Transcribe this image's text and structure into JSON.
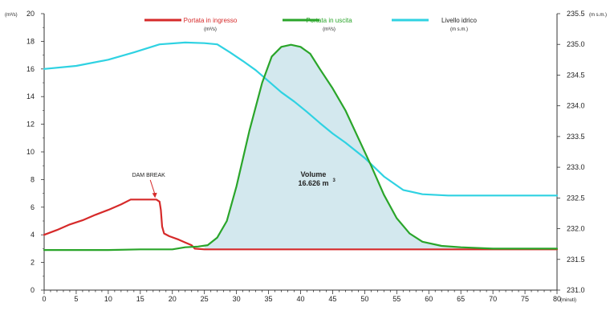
{
  "chart_data": {
    "type": "line",
    "x_unit": "(minuti)",
    "xlim": [
      0,
      80
    ],
    "x_ticks": [
      0,
      5,
      10,
      15,
      20,
      25,
      30,
      35,
      40,
      45,
      50,
      55,
      60,
      65,
      70,
      75,
      80
    ],
    "y_left": {
      "unit": "(m³/s)",
      "ylim": [
        0,
        20
      ],
      "ticks": [
        0,
        2,
        4,
        6,
        8,
        10,
        12,
        14,
        16,
        18,
        20
      ]
    },
    "y_right": {
      "unit": "(m s.m.)",
      "ylim": [
        231.0,
        235.5
      ],
      "ticks": [
        "231.0",
        "231.5",
        "232.0",
        "232.5",
        "233.0",
        "233.5",
        "234.0",
        "234.5",
        "235.0",
        "235.5"
      ]
    },
    "grid": false,
    "legend_position": "top",
    "series": [
      {
        "name": "Portata in ingresso",
        "unit": "(m³/s)",
        "color": "#d62a2a",
        "axis": "left",
        "points": [
          [
            0,
            4.0
          ],
          [
            2,
            4.35
          ],
          [
            4,
            4.75
          ],
          [
            6,
            5.05
          ],
          [
            8,
            5.45
          ],
          [
            10,
            5.8
          ],
          [
            12,
            6.2
          ],
          [
            13.5,
            6.55
          ],
          [
            15,
            6.55
          ],
          [
            16.5,
            6.55
          ],
          [
            17.5,
            6.55
          ],
          [
            18,
            6.4
          ],
          [
            18.2,
            5.8
          ],
          [
            18.4,
            4.6
          ],
          [
            18.7,
            4.1
          ],
          [
            19.5,
            3.9
          ],
          [
            21,
            3.65
          ],
          [
            22,
            3.45
          ],
          [
            23,
            3.25
          ],
          [
            23.5,
            3.0
          ],
          [
            25,
            2.95
          ],
          [
            40,
            2.95
          ],
          [
            60,
            2.95
          ],
          [
            70,
            2.95
          ],
          [
            80,
            2.95
          ]
        ]
      },
      {
        "name": "Portata in uscita",
        "unit": "(m³/s)",
        "color": "#2aa52a",
        "axis": "left",
        "points": [
          [
            0,
            2.9
          ],
          [
            10,
            2.9
          ],
          [
            15,
            2.95
          ],
          [
            20,
            2.95
          ],
          [
            22,
            3.1
          ],
          [
            24,
            3.15
          ],
          [
            25.5,
            3.25
          ],
          [
            27,
            3.8
          ],
          [
            28.5,
            5.0
          ],
          [
            30,
            7.5
          ],
          [
            32,
            11.5
          ],
          [
            34,
            15.0
          ],
          [
            35.5,
            16.9
          ],
          [
            37,
            17.6
          ],
          [
            38.5,
            17.75
          ],
          [
            40,
            17.6
          ],
          [
            41.5,
            17.1
          ],
          [
            43,
            16.0
          ],
          [
            45,
            14.6
          ],
          [
            47,
            13.0
          ],
          [
            49,
            11.0
          ],
          [
            51,
            9.0
          ],
          [
            53,
            6.9
          ],
          [
            55,
            5.2
          ],
          [
            57,
            4.1
          ],
          [
            59,
            3.5
          ],
          [
            62,
            3.2
          ],
          [
            65,
            3.1
          ],
          [
            70,
            3.0
          ],
          [
            80,
            3.0
          ]
        ]
      },
      {
        "name": "Livello idrico",
        "unit": "(m s.m.)",
        "color": "#2fd2e2",
        "axis": "right",
        "points": [
          [
            0,
            234.6
          ],
          [
            5,
            234.65
          ],
          [
            10,
            234.75
          ],
          [
            14,
            234.87
          ],
          [
            18,
            235.0
          ],
          [
            22,
            235.03
          ],
          [
            25,
            235.02
          ],
          [
            27,
            235.0
          ],
          [
            29,
            234.87
          ],
          [
            31,
            234.73
          ],
          [
            33,
            234.58
          ],
          [
            35,
            234.4
          ],
          [
            37,
            234.22
          ],
          [
            39,
            234.07
          ],
          [
            41,
            233.9
          ],
          [
            43,
            233.72
          ],
          [
            45,
            233.55
          ],
          [
            47,
            233.4
          ],
          [
            50,
            233.15
          ],
          [
            53,
            232.85
          ],
          [
            56,
            232.63
          ],
          [
            59,
            232.56
          ],
          [
            63,
            232.54
          ],
          [
            70,
            232.54
          ],
          [
            80,
            232.54
          ]
        ]
      }
    ],
    "shaded_area": {
      "series": "Portata in uscita",
      "x_range": [
        25,
        70
      ],
      "color": "#d3e8ee"
    },
    "annotations": {
      "dam_break": {
        "text": "DAM BREAK",
        "x": 17.3,
        "y": 6.55
      },
      "volume_title": "Volume",
      "volume_value": "16.626 m",
      "volume_exp": "3"
    }
  }
}
